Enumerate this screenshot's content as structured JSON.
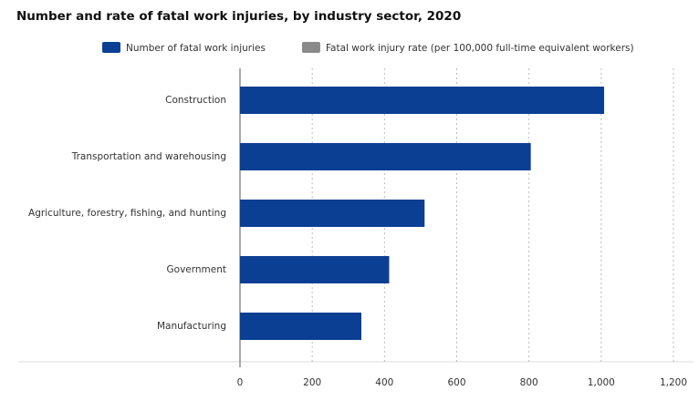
{
  "chart_data": {
    "type": "bar",
    "orientation": "horizontal",
    "title": "Number and rate of fatal work injuries, by industry sector, 2020",
    "categories": [
      "Construction",
      "Transportation and warehousing",
      "Agriculture, forestry, fishing, and hunting",
      "Government",
      "Manufacturing"
    ],
    "series": [
      {
        "name": "Number of fatal work injuries",
        "color": "#0b3f93",
        "values": [
          1008,
          805,
          511,
          413,
          336
        ]
      },
      {
        "name": "Fatal work injury rate (per 100,000 full-time equivalent workers)",
        "color": "#8a8a8a",
        "hidden": true,
        "values": [
          null,
          null,
          null,
          null,
          null
        ]
      }
    ],
    "xlim": [
      0,
      1200
    ],
    "xticks": [
      0,
      200,
      400,
      600,
      800,
      {
        "value": 1000,
        "label": "1,000"
      },
      {
        "value": 1200,
        "label": "1,200"
      }
    ],
    "grid": true
  }
}
